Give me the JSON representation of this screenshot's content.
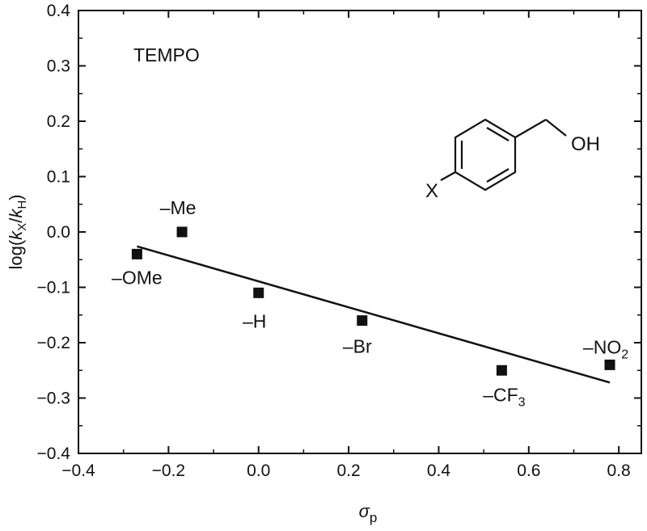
{
  "chart_data": {
    "type": "scatter",
    "title": "",
    "annotation": "TEMPO",
    "xlabel": "σ",
    "xlabel_sub": "p",
    "ylabel": {
      "prefix": "log(",
      "k1": "k",
      "sub1": "X",
      "slash": "/",
      "k2": "k",
      "sub2": "H",
      "suffix": ")"
    },
    "xlim": [
      -0.4,
      0.85
    ],
    "ylim": [
      -0.4,
      0.4
    ],
    "xticks": [
      "-0.4",
      "-0.2",
      "0.0",
      "0.2",
      "0.4",
      "0.6",
      "0.8"
    ],
    "yticks": [
      "0.4",
      "0.3",
      "0.2",
      "0.1",
      "0.0",
      "-0.1",
      "-0.2",
      "-0.3",
      "-0.4"
    ],
    "grid": false,
    "points": [
      {
        "label": "–OMe",
        "x": -0.27,
        "y": -0.04
      },
      {
        "label": "–Me",
        "x": -0.17,
        "y": 0.0
      },
      {
        "label": "–H",
        "x": 0.0,
        "y": -0.11
      },
      {
        "label": "–Br",
        "x": 0.23,
        "y": -0.16
      },
      {
        "label": "–CF",
        "sub": "3",
        "x": 0.54,
        "y": -0.25
      },
      {
        "label": "–NO",
        "sub": "2",
        "x": 0.78,
        "y": -0.24
      }
    ],
    "fit_line": {
      "x": [
        -0.27,
        0.78
      ],
      "y": [
        -0.026,
        -0.272
      ]
    },
    "structure": {
      "substituent": "X",
      "group": "OH"
    },
    "colors": {
      "marker": "#111111",
      "line": "#111111",
      "axis": "#111111"
    }
  }
}
